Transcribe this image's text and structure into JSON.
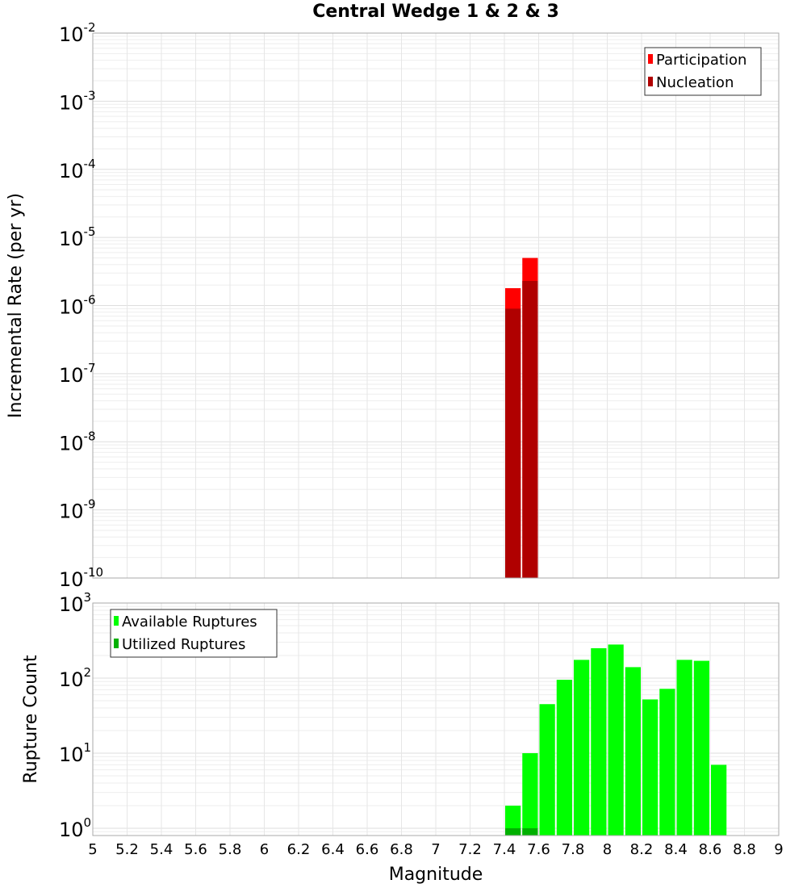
{
  "title": "Central Wedge 1 & 2 & 3",
  "chart_data": [
    {
      "type": "bar",
      "ylabel": "Incremental Rate (per yr)",
      "yscale": "log",
      "xlim": [
        5,
        9
      ],
      "ylim": [
        1e-10,
        0.01
      ],
      "grid": true,
      "legend_position": "top-right",
      "bin_width": 0.1,
      "y_ticks": [
        {
          "base": "10",
          "exp": "-10"
        },
        {
          "base": "10",
          "exp": "-9"
        },
        {
          "base": "10",
          "exp": "-8"
        },
        {
          "base": "10",
          "exp": "-7"
        },
        {
          "base": "10",
          "exp": "-6"
        },
        {
          "base": "10",
          "exp": "-5"
        },
        {
          "base": "10",
          "exp": "-4"
        },
        {
          "base": "10",
          "exp": "-3"
        },
        {
          "base": "10",
          "exp": "-2"
        }
      ],
      "series": [
        {
          "name": "Participation",
          "color": "#ff0000",
          "x": [
            7.45,
            7.55
          ],
          "values": [
            1.8e-06,
            5e-06
          ]
        },
        {
          "name": "Nucleation",
          "color": "#b00000",
          "x": [
            7.45,
            7.55
          ],
          "values": [
            9e-07,
            2.3e-06
          ]
        }
      ]
    },
    {
      "type": "bar",
      "xlabel": "Magnitude",
      "ylabel": "Rupture Count",
      "yscale": "log",
      "xlim": [
        5,
        9
      ],
      "ylim": [
        0.8,
        1000
      ],
      "grid": true,
      "legend_position": "top-left",
      "bin_width": 0.1,
      "x_ticks": [
        "5",
        "5.2",
        "5.4",
        "5.6",
        "5.8",
        "6",
        "6.2",
        "6.4",
        "6.6",
        "6.8",
        "7",
        "7.2",
        "7.4",
        "7.6",
        "7.8",
        "8",
        "8.2",
        "8.4",
        "8.6",
        "8.8",
        "9"
      ],
      "y_ticks": [
        {
          "base": "10",
          "exp": "0"
        },
        {
          "base": "10",
          "exp": "1"
        },
        {
          "base": "10",
          "exp": "2"
        },
        {
          "base": "10",
          "exp": "3"
        }
      ],
      "series": [
        {
          "name": "Available Ruptures",
          "color": "#00ff00",
          "x": [
            7.45,
            7.55,
            7.65,
            7.75,
            7.85,
            7.95,
            8.05,
            8.15,
            8.25,
            8.35,
            8.45,
            8.55,
            8.65
          ],
          "values": [
            2,
            10,
            45,
            95,
            175,
            250,
            280,
            140,
            52,
            72,
            175,
            170,
            7
          ]
        },
        {
          "name": "Utilized Ruptures",
          "color": "#00b000",
          "x": [
            7.45,
            7.55
          ],
          "values": [
            1,
            1
          ]
        }
      ]
    }
  ]
}
